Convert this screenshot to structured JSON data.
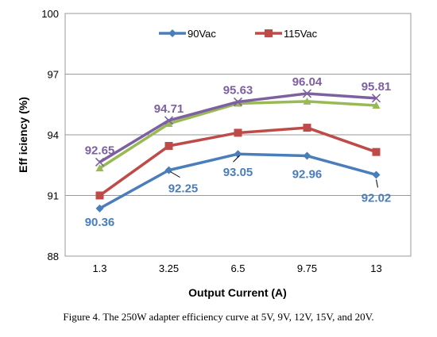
{
  "chart_data": {
    "type": "line",
    "categories": [
      "1.3",
      "3.25",
      "6.5",
      "9.75",
      "13"
    ],
    "series": [
      {
        "name": "90Vac",
        "values": [
          90.36,
          92.25,
          93.05,
          92.96,
          92.02
        ],
        "color": "#4a7ebb",
        "marker": "diamond",
        "show_labels": true,
        "in_legend": true
      },
      {
        "name": "115Vac",
        "values": [
          91.0,
          93.45,
          94.1,
          94.35,
          93.15
        ],
        "color": "#be4b48",
        "marker": "square",
        "show_labels": false,
        "in_legend": true
      },
      {
        "name": "",
        "values": [
          92.35,
          94.55,
          95.55,
          95.65,
          95.45
        ],
        "color": "#98b954",
        "marker": "triangle",
        "show_labels": false,
        "in_legend": false
      },
      {
        "name": "",
        "values": [
          92.65,
          94.71,
          95.63,
          96.04,
          95.81
        ],
        "color": "#7d60a0",
        "marker": "x",
        "show_labels": true,
        "in_legend": false
      }
    ],
    "xlabel": "Output Current (A)",
    "ylabel": "Eff iciency (%)",
    "ylim": [
      88,
      100
    ],
    "yticks": [
      88,
      91,
      94,
      97,
      100
    ],
    "grid": true,
    "legend_position": "top-center"
  },
  "caption": "Figure 4. The 250W adapter efficiency curve at 5V, 9V, 12V, 15V, and 20V."
}
